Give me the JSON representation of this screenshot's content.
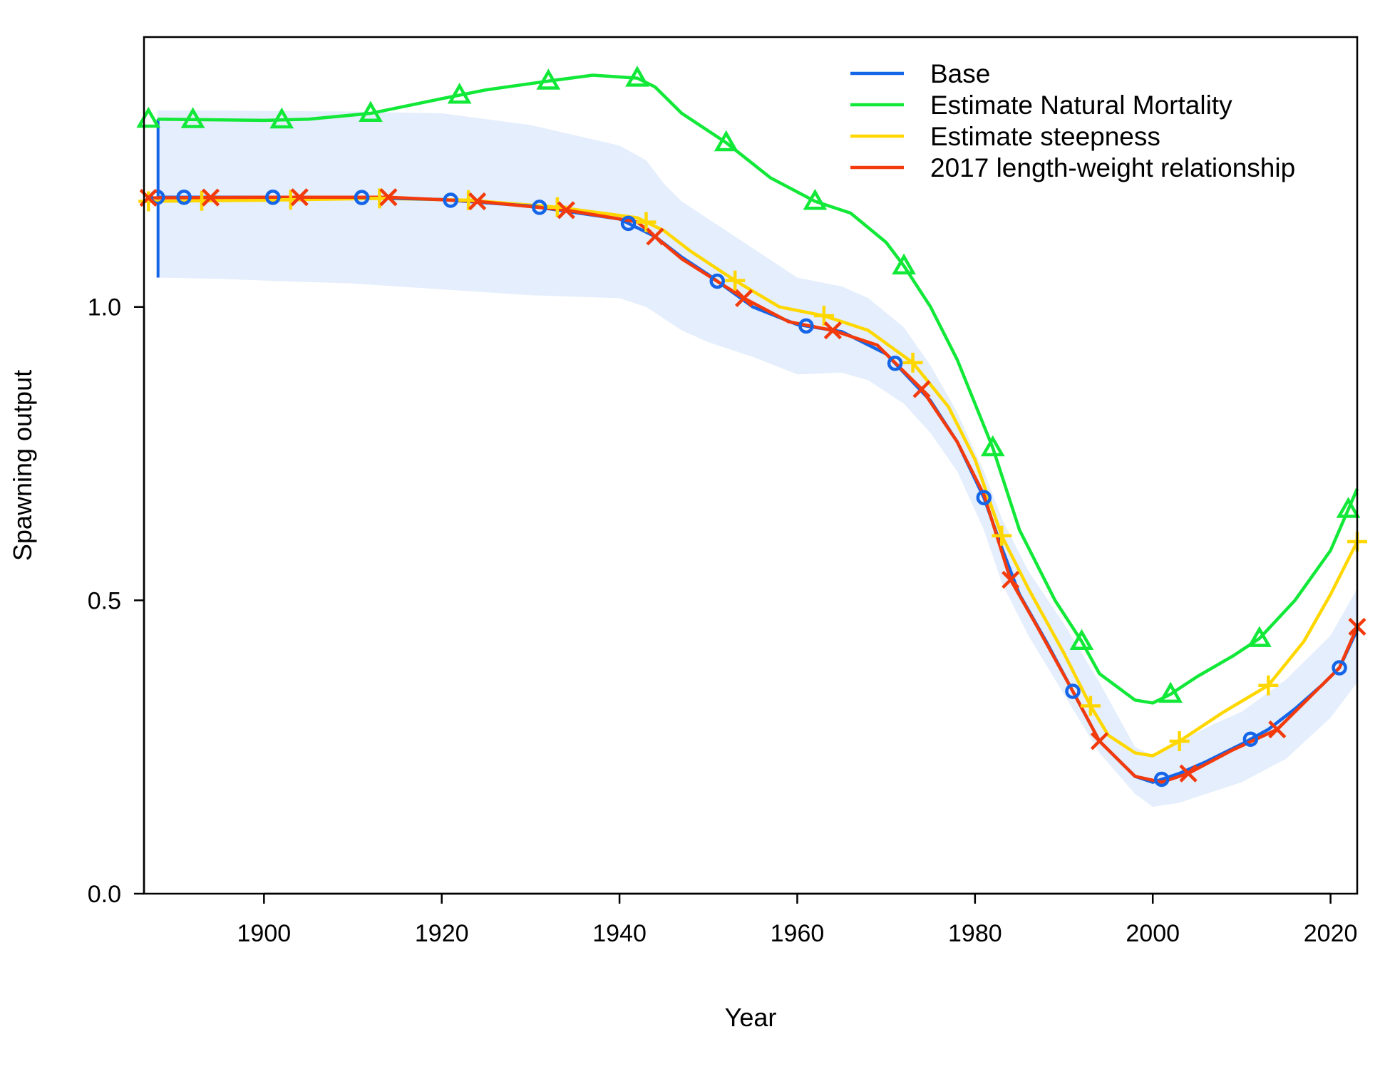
{
  "chart_data": {
    "type": "line",
    "xlabel": "Year",
    "ylabel": "Spawning output",
    "xlim": [
      1886.5,
      2023
    ],
    "ylim": [
      0,
      1.46
    ],
    "x_ticks": [
      {
        "value": 1900,
        "label": "1900"
      },
      {
        "value": 1920,
        "label": "1920"
      },
      {
        "value": 1940,
        "label": "1940"
      },
      {
        "value": 1960,
        "label": "1960"
      },
      {
        "value": 1980,
        "label": "1980"
      },
      {
        "value": 2000,
        "label": "2000"
      },
      {
        "value": 2020,
        "label": "2020"
      }
    ],
    "y_ticks": [
      {
        "value": 0.0,
        "label": "0.0"
      },
      {
        "value": 0.5,
        "label": "0.5"
      },
      {
        "value": 1.0,
        "label": "1.0"
      }
    ],
    "grid": false,
    "legend_position": "top-right",
    "series": [
      {
        "name": "Base",
        "color": "#1565e8",
        "marker": "circle",
        "points": [
          [
            1888,
            1.187
          ],
          [
            1900,
            1.187
          ],
          [
            1910,
            1.187
          ],
          [
            1920,
            1.183
          ],
          [
            1930,
            1.172
          ],
          [
            1940,
            1.15
          ],
          [
            1944,
            1.12
          ],
          [
            1947,
            1.085
          ],
          [
            1950,
            1.055
          ],
          [
            1955,
            1.0
          ],
          [
            1960,
            0.97
          ],
          [
            1965,
            0.958
          ],
          [
            1970,
            0.92
          ],
          [
            1975,
            0.84
          ],
          [
            1978,
            0.77
          ],
          [
            1981,
            0.675
          ],
          [
            1983,
            0.59
          ],
          [
            1985,
            0.51
          ],
          [
            1988,
            0.43
          ],
          [
            1991,
            0.345
          ],
          [
            1994,
            0.26
          ],
          [
            1998,
            0.2
          ],
          [
            2000,
            0.19
          ],
          [
            2003,
            0.205
          ],
          [
            2006,
            0.225
          ],
          [
            2010,
            0.255
          ],
          [
            2013,
            0.28
          ],
          [
            2016,
            0.315
          ],
          [
            2019,
            0.355
          ],
          [
            2021,
            0.385
          ],
          [
            2023,
            0.45
          ]
        ],
        "markers_x": [
          1888,
          1891,
          1901,
          1911,
          1921,
          1931,
          1941,
          1951,
          1961,
          1971,
          1981,
          1991,
          2001,
          2011,
          2021
        ],
        "ci_year1": [
          1.05,
          1.32
        ],
        "ci": {
          "years": [
            1888,
            1895,
            1900,
            1910,
            1920,
            1930,
            1940,
            1943,
            1945,
            1947,
            1950,
            1955,
            1960,
            1965,
            1968,
            1972,
            1975,
            1978,
            1981,
            1983,
            1986,
            1990,
            1994,
            1998,
            2000,
            2003,
            2007,
            2010,
            2015,
            2020,
            2023
          ],
          "lower": [
            1.05,
            1.048,
            1.045,
            1.04,
            1.03,
            1.02,
            1.015,
            1.0,
            0.98,
            0.96,
            0.94,
            0.915,
            0.885,
            0.888,
            0.875,
            0.835,
            0.785,
            0.72,
            0.62,
            0.53,
            0.44,
            0.34,
            0.24,
            0.17,
            0.148,
            0.155,
            0.175,
            0.19,
            0.23,
            0.3,
            0.36
          ],
          "upper": [
            1.335,
            1.335,
            1.334,
            1.333,
            1.33,
            1.31,
            1.275,
            1.25,
            1.21,
            1.18,
            1.15,
            1.1,
            1.05,
            1.035,
            1.015,
            0.965,
            0.9,
            0.82,
            0.72,
            0.64,
            0.55,
            0.46,
            0.36,
            0.25,
            0.235,
            0.26,
            0.29,
            0.31,
            0.365,
            0.44,
            0.52
          ]
        }
      },
      {
        "name": "Estimate Natural Mortality",
        "color": "#12e838",
        "marker": "triangle",
        "points": [
          [
            1888,
            1.32
          ],
          [
            1900,
            1.318
          ],
          [
            1905,
            1.32
          ],
          [
            1912,
            1.33
          ],
          [
            1920,
            1.355
          ],
          [
            1925,
            1.37
          ],
          [
            1932,
            1.385
          ],
          [
            1937,
            1.395
          ],
          [
            1942,
            1.39
          ],
          [
            1944,
            1.375
          ],
          [
            1947,
            1.33
          ],
          [
            1952,
            1.28
          ],
          [
            1957,
            1.22
          ],
          [
            1962,
            1.18
          ],
          [
            1966,
            1.16
          ],
          [
            1970,
            1.11
          ],
          [
            1972,
            1.07
          ],
          [
            1975,
            1.0
          ],
          [
            1978,
            0.91
          ],
          [
            1982,
            0.76
          ],
          [
            1985,
            0.62
          ],
          [
            1989,
            0.5
          ],
          [
            1992,
            0.43
          ],
          [
            1994,
            0.375
          ],
          [
            1998,
            0.33
          ],
          [
            2000,
            0.325
          ],
          [
            2002,
            0.34
          ],
          [
            2005,
            0.37
          ],
          [
            2009,
            0.405
          ],
          [
            2012,
            0.435
          ],
          [
            2016,
            0.5
          ],
          [
            2020,
            0.585
          ],
          [
            2023,
            0.69
          ]
        ],
        "markers_x": [
          1887,
          1892,
          1902,
          1912,
          1922,
          1932,
          1942,
          1952,
          1962,
          1972,
          1982,
          1992,
          2002,
          2012,
          2022
        ]
      },
      {
        "name": "Estimate steepness",
        "color": "#ffd700",
        "marker": "plus",
        "points": [
          [
            1887,
            1.18
          ],
          [
            1900,
            1.182
          ],
          [
            1913,
            1.185
          ],
          [
            1923,
            1.182
          ],
          [
            1933,
            1.17
          ],
          [
            1942,
            1.152
          ],
          [
            1945,
            1.13
          ],
          [
            1948,
            1.095
          ],
          [
            1953,
            1.045
          ],
          [
            1958,
            1.0
          ],
          [
            1963,
            0.985
          ],
          [
            1968,
            0.96
          ],
          [
            1973,
            0.905
          ],
          [
            1977,
            0.83
          ],
          [
            1980,
            0.74
          ],
          [
            1983,
            0.61
          ],
          [
            1986,
            0.52
          ],
          [
            1990,
            0.41
          ],
          [
            1993,
            0.32
          ],
          [
            1995,
            0.27
          ],
          [
            1998,
            0.24
          ],
          [
            2000,
            0.235
          ],
          [
            2003,
            0.26
          ],
          [
            2008,
            0.31
          ],
          [
            2013,
            0.355
          ],
          [
            2017,
            0.43
          ],
          [
            2020,
            0.51
          ],
          [
            2023,
            0.6
          ]
        ],
        "markers_x": [
          1887,
          1893,
          1903,
          1913,
          1923,
          1933,
          1943,
          1953,
          1963,
          1973,
          1983,
          1993,
          2003,
          2013,
          2023
        ]
      },
      {
        "name": "2017 length-weight relationship",
        "color": "#f23a0c",
        "marker": "x",
        "points": [
          [
            1887,
            1.186
          ],
          [
            1900,
            1.187
          ],
          [
            1914,
            1.187
          ],
          [
            1924,
            1.18
          ],
          [
            1934,
            1.165
          ],
          [
            1942,
            1.145
          ],
          [
            1944,
            1.12
          ],
          [
            1947,
            1.082
          ],
          [
            1954,
            1.015
          ],
          [
            1959,
            0.975
          ],
          [
            1964,
            0.96
          ],
          [
            1969,
            0.935
          ],
          [
            1974,
            0.86
          ],
          [
            1978,
            0.77
          ],
          [
            1981,
            0.68
          ],
          [
            1984,
            0.535
          ],
          [
            1987,
            0.455
          ],
          [
            1991,
            0.345
          ],
          [
            1994,
            0.26
          ],
          [
            1998,
            0.2
          ],
          [
            2001,
            0.19
          ],
          [
            2004,
            0.205
          ],
          [
            2009,
            0.245
          ],
          [
            2014,
            0.28
          ],
          [
            2018,
            0.34
          ],
          [
            2021,
            0.385
          ],
          [
            2023,
            0.455
          ]
        ],
        "markers_x": [
          1887,
          1894,
          1904,
          1914,
          1924,
          1934,
          1944,
          1954,
          1964,
          1974,
          1984,
          1994,
          2004,
          2014,
          2023
        ]
      }
    ]
  }
}
